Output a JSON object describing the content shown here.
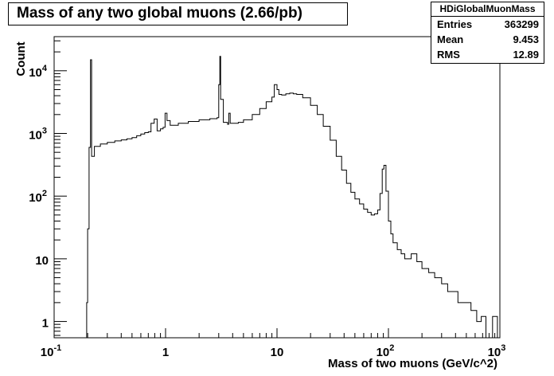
{
  "chart_data": {
    "type": "histogram",
    "title": "Mass of any two global muons (2.66/pb)",
    "xlabel": "Mass of two muons (GeV/c^2)",
    "ylabel": "Count",
    "xscale": "log",
    "yscale": "log",
    "xlim": [
      0.1,
      1000
    ],
    "ylim": [
      0.55,
      35000
    ],
    "x_ticks": [
      {
        "value": 0.1,
        "base": "10",
        "exp": "-1"
      },
      {
        "value": 1,
        "base": "1",
        "exp": ""
      },
      {
        "value": 10,
        "base": "10",
        "exp": ""
      },
      {
        "value": 100,
        "base": "10",
        "exp": "2"
      },
      {
        "value": 1000,
        "base": "10",
        "exp": "3"
      }
    ],
    "y_ticks": [
      {
        "value": 1,
        "base": "1",
        "exp": ""
      },
      {
        "value": 10,
        "base": "10",
        "exp": ""
      },
      {
        "value": 100,
        "base": "10",
        "exp": "2"
      },
      {
        "value": 1000,
        "base": "10",
        "exp": "3"
      },
      {
        "value": 10000,
        "base": "10",
        "exp": "4"
      }
    ],
    "grid": false,
    "legend": "none",
    "line_color": "#000000",
    "stats": {
      "name": "HDiGlobalMuonMass",
      "rows": [
        {
          "label": "Entries",
          "value": "363299"
        },
        {
          "label": "Mean",
          "value": "9.453"
        },
        {
          "label": "RMS",
          "value": "12.89"
        }
      ]
    },
    "points": [
      [
        0.19,
        0.5
      ],
      [
        0.196,
        2
      ],
      [
        0.2,
        30
      ],
      [
        0.206,
        600
      ],
      [
        0.212,
        15000
      ],
      [
        0.217,
        430
      ],
      [
        0.23,
        620
      ],
      [
        0.26,
        680
      ],
      [
        0.3,
        720
      ],
      [
        0.35,
        760
      ],
      [
        0.4,
        790
      ],
      [
        0.45,
        820
      ],
      [
        0.5,
        860
      ],
      [
        0.55,
        920
      ],
      [
        0.6,
        980
      ],
      [
        0.65,
        1030
      ],
      [
        0.7,
        1060
      ],
      [
        0.74,
        1450
      ],
      [
        0.79,
        1700
      ],
      [
        0.84,
        1100
      ],
      [
        0.9,
        1180
      ],
      [
        0.95,
        1250
      ],
      [
        0.99,
        2100
      ],
      [
        1.03,
        1600
      ],
      [
        1.1,
        1350
      ],
      [
        1.3,
        1450
      ],
      [
        1.6,
        1550
      ],
      [
        2.0,
        1650
      ],
      [
        2.5,
        1720
      ],
      [
        2.9,
        1780
      ],
      [
        3.0,
        6000
      ],
      [
        3.07,
        17000
      ],
      [
        3.12,
        3500
      ],
      [
        3.3,
        1500
      ],
      [
        3.6,
        1400
      ],
      [
        3.69,
        2100
      ],
      [
        3.8,
        1450
      ],
      [
        4.5,
        1500
      ],
      [
        5.0,
        1650
      ],
      [
        6.0,
        2000
      ],
      [
        7.0,
        2500
      ],
      [
        8.0,
        3200
      ],
      [
        9.0,
        3800
      ],
      [
        9.46,
        6000
      ],
      [
        10.0,
        5000
      ],
      [
        10.4,
        4200
      ],
      [
        11.0,
        4100
      ],
      [
        12.0,
        4300
      ],
      [
        13.0,
        4400
      ],
      [
        14.0,
        4300
      ],
      [
        15.0,
        4200
      ],
      [
        17.0,
        3700
      ],
      [
        20.0,
        2800
      ],
      [
        23.0,
        2000
      ],
      [
        26.0,
        1300
      ],
      [
        30.0,
        780
      ],
      [
        34.0,
        430
      ],
      [
        38.0,
        260
      ],
      [
        42.0,
        160
      ],
      [
        46.0,
        115
      ],
      [
        50.0,
        90
      ],
      [
        55.0,
        75
      ],
      [
        60.0,
        62
      ],
      [
        65.0,
        55
      ],
      [
        70.0,
        50
      ],
      [
        75.0,
        52
      ],
      [
        80.0,
        60
      ],
      [
        84.0,
        110
      ],
      [
        88.0,
        270
      ],
      [
        91.0,
        310
      ],
      [
        95.0,
        120
      ],
      [
        100.0,
        40
      ],
      [
        105.0,
        25
      ],
      [
        110.0,
        18
      ],
      [
        120.0,
        14
      ],
      [
        130.0,
        12
      ],
      [
        140.0,
        10
      ],
      [
        160.0,
        12
      ],
      [
        180.0,
        9
      ],
      [
        200.0,
        7
      ],
      [
        230.0,
        6
      ],
      [
        260.0,
        5
      ],
      [
        300.0,
        4
      ],
      [
        340.0,
        3
      ],
      [
        380.0,
        3
      ],
      [
        420.0,
        2
      ],
      [
        480.0,
        2
      ],
      [
        550.0,
        1.5
      ],
      [
        620.0,
        1
      ],
      [
        680.0,
        1.2
      ],
      [
        750.0,
        0.5
      ],
      [
        860.0,
        1.2
      ],
      [
        950.0,
        0.5
      ]
    ]
  }
}
